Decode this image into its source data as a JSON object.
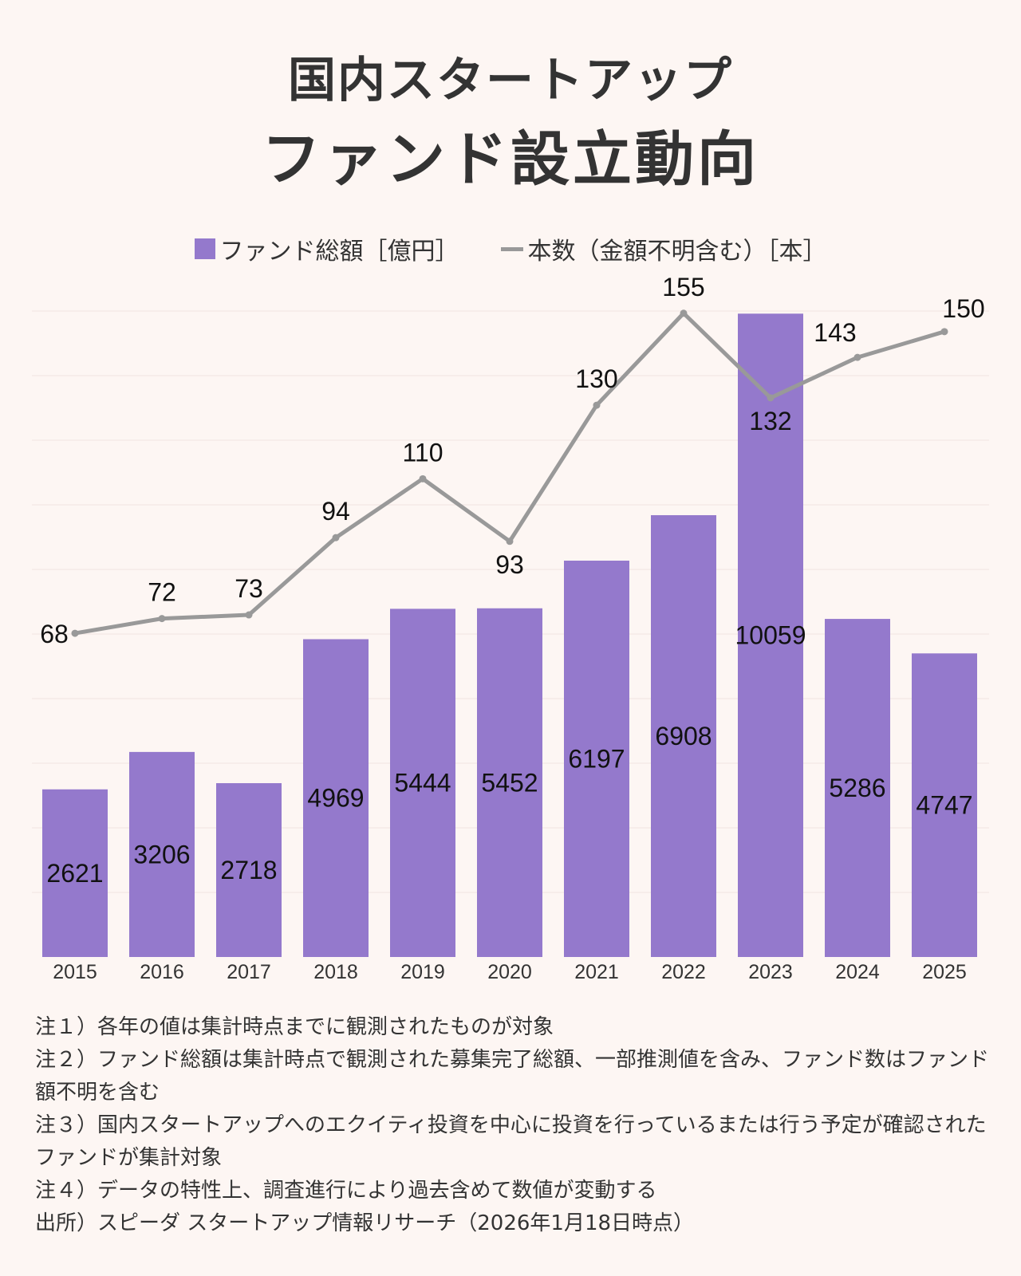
{
  "title": {
    "line1": "国内スタートアップ",
    "line2": "ファンド設立動向"
  },
  "colors": {
    "bar": "#9479cc",
    "line": "#999999",
    "background": "#fdf6f3",
    "text": "#333333",
    "grid": "#f1e4e0"
  },
  "chart_data": {
    "type": "bar",
    "title": "国内スタートアップ ファンド設立動向",
    "categories": [
      "2015",
      "2016",
      "2017",
      "2018",
      "2019",
      "2020",
      "2021",
      "2022",
      "2023",
      "2024",
      "2025"
    ],
    "series": [
      {
        "name": "ファンド総額［億円］",
        "type": "bar",
        "axis": "left",
        "values": [
          2621,
          3206,
          2718,
          4969,
          5444,
          5452,
          6197,
          6908,
          10059,
          5286,
          4747
        ]
      },
      {
        "name": "本数（金額不明含む）［本］",
        "type": "line",
        "axis": "right",
        "values": [
          68,
          72,
          73,
          94,
          110,
          93,
          130,
          155,
          132,
          143,
          150
        ]
      }
    ],
    "xlabel": "",
    "ylabel": "",
    "ylim": [
      0,
      10100
    ],
    "y2lim": [
      -20,
      155.6
    ],
    "legend": "top-center",
    "grid": true
  },
  "notes": [
    "注１）各年の値は集計時点までに観測されたものが対象",
    "注２）ファンド総額は集計時点で観測された募集完了総額、一部推測値を含み、ファンド数はファンド額不明を含む",
    "注３）国内スタートアップへのエクイティ投資を中心に投資を行っているまたは行う予定が確認されたファンドが集計対象",
    "注４）データの特性上、調査進行により過去含めて数値が変動する",
    "出所）スピーダ スタートアップ情報リサーチ（2026年1月18日時点）"
  ]
}
